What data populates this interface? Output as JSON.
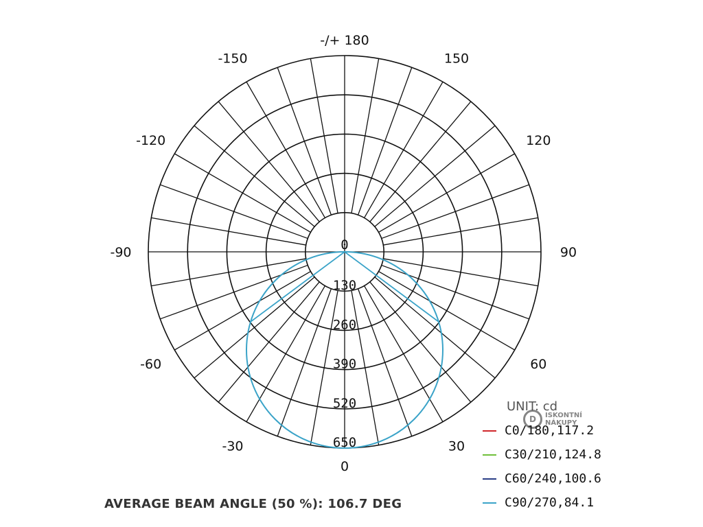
{
  "chart_data": {
    "type": "polar",
    "unit_label": "UNIT: cd",
    "radial_ticks": [
      "0",
      "130",
      "260",
      "390",
      "520",
      "650"
    ],
    "radial_range": [
      0,
      650
    ],
    "angle_labels": [
      {
        "angle": 180,
        "text": "-/+ 180"
      },
      {
        "angle": 150,
        "text": "150"
      },
      {
        "angle": -150,
        "text": "-150"
      },
      {
        "angle": 120,
        "text": "120"
      },
      {
        "angle": -120,
        "text": "-120"
      },
      {
        "angle": 90,
        "text": "90"
      },
      {
        "angle": -90,
        "text": "-90"
      },
      {
        "angle": 60,
        "text": "60"
      },
      {
        "angle": -60,
        "text": "-60"
      },
      {
        "angle": 30,
        "text": "30"
      },
      {
        "angle": -30,
        "text": "-30"
      },
      {
        "angle": 0,
        "text": "0"
      }
    ],
    "spoke_step_deg": 10,
    "series": [
      {
        "name": "C0/180,117.2",
        "color": "#d0262a",
        "visible": false
      },
      {
        "name": "C30/210,124.8",
        "color": "#6fbf3a",
        "visible": false
      },
      {
        "name": "C60/240,100.6",
        "color": "#2a3d86",
        "visible": false
      },
      {
        "name": "C90/270,84.1",
        "color": "#3aa3c8",
        "visible": true,
        "curve": {
          "type": "circle-through-origin",
          "max_value": 650
        },
        "beam_lines": {
          "half_angle_deg": 53.35,
          "value": 325
        }
      }
    ],
    "footnote": "AVERAGE BEAM ANGLE (50 %): 106.7 DEG"
  },
  "logo": {
    "mark": "D",
    "line1": "ISKONTNÍ",
    "line2": "NÁKUPY"
  }
}
